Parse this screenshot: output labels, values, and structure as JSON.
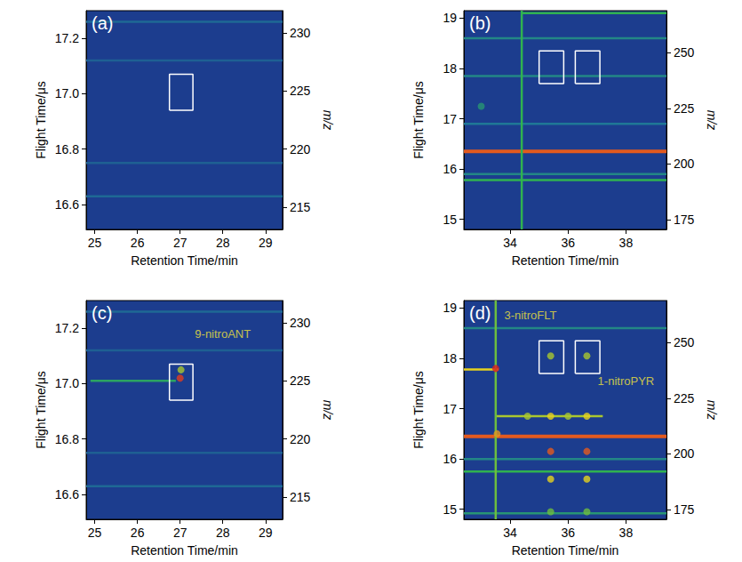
{
  "chart_data": [
    {
      "type": "heatmap",
      "panel": "(a)",
      "x_label": "Retention Time/min",
      "y_label": "Flight Time/μs",
      "y2_label": "m/z",
      "xlim": [
        24.8,
        29.4
      ],
      "xticks": [
        25,
        26,
        27,
        28,
        29
      ],
      "ylim": [
        16.51,
        17.3
      ],
      "yticks": [
        16.6,
        16.8,
        {
          "value": 17,
          "label": "17.0"
        },
        17.2
      ],
      "y2lim": [
        213.1,
        231.9
      ],
      "y2ticks": [
        215,
        220,
        225,
        230
      ],
      "zlim": [
        0,
        10
      ],
      "bands": [
        {
          "x": [
            24.8,
            29.4
          ],
          "y": [
            16.63,
            16.63
          ],
          "intensity": 1.5
        },
        {
          "x": [
            24.8,
            29.4
          ],
          "y": [
            16.75,
            16.75
          ],
          "intensity": 1.2
        },
        {
          "x": [
            24.8,
            29.4
          ],
          "y": [
            17.12,
            17.12
          ],
          "intensity": 1.2
        },
        {
          "x": [
            24.8,
            29.4
          ],
          "y": [
            17.26,
            17.26
          ],
          "intensity": 1.5
        }
      ],
      "spots": [],
      "boxes": [
        {
          "x": [
            26.75,
            27.3
          ],
          "y": [
            16.94,
            17.07
          ]
        }
      ],
      "annotations": []
    },
    {
      "type": "heatmap",
      "panel": "(b)",
      "x_label": "Retention Time/min",
      "y_label": "Flight Time/μs",
      "y2_label": "m/z",
      "xlim": [
        32.4,
        39.4
      ],
      "xticks": [
        34,
        36,
        38
      ],
      "ylim": [
        14.8,
        19.15
      ],
      "yticks": [
        15,
        16,
        17,
        18,
        19
      ],
      "y2lim": [
        170.5,
        269
      ],
      "y2ticks": [
        175,
        200,
        225,
        250
      ],
      "zlim": [
        0,
        10
      ],
      "bands": [
        {
          "x": [
            32.4,
            39.4
          ],
          "y": [
            16.35,
            16.35
          ],
          "intensity": 9
        },
        {
          "x": [
            32.4,
            39.4
          ],
          "y": [
            15.78,
            15.78
          ],
          "intensity": 4
        },
        {
          "x": [
            32.4,
            39.4
          ],
          "y": [
            15.9,
            15.9
          ],
          "intensity": 2.5
        },
        {
          "x": [
            32.4,
            39.4
          ],
          "y": [
            16.9,
            16.9
          ],
          "intensity": 2
        },
        {
          "x": [
            32.4,
            39.4
          ],
          "y": [
            17.85,
            17.85
          ],
          "intensity": 2.5
        },
        {
          "x": [
            32.4,
            39.4
          ],
          "y": [
            18.6,
            18.6
          ],
          "intensity": 2.5
        },
        {
          "x": [
            34.4,
            39.4
          ],
          "y": [
            19.1,
            19.1
          ],
          "intensity": 4
        },
        {
          "x": [
            34.4,
            34.4
          ],
          "y": [
            14.8,
            19.15
          ],
          "intensity": 4
        }
      ],
      "spots": [
        {
          "x": 33.0,
          "y": 17.25,
          "intensity": 3
        }
      ],
      "boxes": [
        {
          "x": [
            35.0,
            35.85
          ],
          "y": [
            17.7,
            18.35
          ]
        },
        {
          "x": [
            36.25,
            37.1
          ],
          "y": [
            17.7,
            18.35
          ]
        }
      ],
      "annotations": []
    },
    {
      "type": "heatmap",
      "panel": "(c)",
      "x_label": "Retention Time/min",
      "y_label": "Flight Time/μs",
      "y2_label": "m/z",
      "xlim": [
        24.8,
        29.4
      ],
      "xticks": [
        25,
        26,
        27,
        28,
        29
      ],
      "ylim": [
        16.51,
        17.3
      ],
      "yticks": [
        16.6,
        16.8,
        {
          "value": 17,
          "label": "17.0"
        },
        17.2
      ],
      "y2lim": [
        213.1,
        231.9
      ],
      "y2ticks": [
        215,
        220,
        225,
        230
      ],
      "zlim": [
        0,
        10
      ],
      "bands": [
        {
          "x": [
            24.8,
            29.4
          ],
          "y": [
            16.63,
            16.63
          ],
          "intensity": 1.5
        },
        {
          "x": [
            24.8,
            29.4
          ],
          "y": [
            16.75,
            16.75
          ],
          "intensity": 1.2
        },
        {
          "x": [
            24.8,
            29.4
          ],
          "y": [
            17.12,
            17.12
          ],
          "intensity": 1.2
        },
        {
          "x": [
            24.8,
            29.4
          ],
          "y": [
            17.26,
            17.26
          ],
          "intensity": 1.5
        },
        {
          "x": [
            24.9,
            26.9
          ],
          "y": [
            17.01,
            17.01
          ],
          "intensity": 3.5
        }
      ],
      "spots": [
        {
          "x": 27.0,
          "y": 17.02,
          "intensity": 9.5
        },
        {
          "x": 27.02,
          "y": 17.05,
          "intensity": 6
        }
      ],
      "boxes": [
        {
          "x": [
            26.75,
            27.3
          ],
          "y": [
            16.94,
            17.07
          ]
        }
      ],
      "annotations": [
        {
          "text": "9-nitroANT",
          "x": 28.0,
          "y": 17.18
        }
      ]
    },
    {
      "type": "heatmap",
      "panel": "(d)",
      "x_label": "Retention Time/min",
      "y_label": "Flight Time/μs",
      "y2_label": "m/z",
      "xlim": [
        32.4,
        39.4
      ],
      "xticks": [
        34,
        36,
        38
      ],
      "ylim": [
        14.8,
        19.15
      ],
      "yticks": [
        15,
        16,
        17,
        18,
        19
      ],
      "y2lim": [
        170.5,
        269
      ],
      "y2ticks": [
        175,
        200,
        225,
        250
      ],
      "zlim": [
        0,
        10
      ],
      "bands": [
        {
          "x": [
            32.4,
            39.4
          ],
          "y": [
            16.45,
            16.45
          ],
          "intensity": 9
        },
        {
          "x": [
            32.4,
            33.6
          ],
          "y": [
            17.78,
            17.78
          ],
          "intensity": 7
        },
        {
          "x": [
            33.5,
            37.2
          ],
          "y": [
            16.85,
            16.85
          ],
          "intensity": 6
        },
        {
          "x": [
            32.4,
            39.4
          ],
          "y": [
            15.75,
            15.75
          ],
          "intensity": 4
        },
        {
          "x": [
            32.4,
            39.4
          ],
          "y": [
            14.92,
            14.92
          ],
          "intensity": 3
        },
        {
          "x": [
            32.4,
            39.4
          ],
          "y": [
            16.0,
            16.0
          ],
          "intensity": 2.5
        },
        {
          "x": [
            32.4,
            39.4
          ],
          "y": [
            18.6,
            18.6
          ],
          "intensity": 2.5
        },
        {
          "x": [
            33.5,
            33.5
          ],
          "y": [
            14.8,
            19.15
          ],
          "intensity": 5
        }
      ],
      "spots": [
        {
          "x": 33.5,
          "y": 17.8,
          "intensity": 10
        },
        {
          "x": 33.55,
          "y": 16.5,
          "intensity": 8
        },
        {
          "x": 35.4,
          "y": 16.15,
          "intensity": 9
        },
        {
          "x": 36.65,
          "y": 16.15,
          "intensity": 9
        },
        {
          "x": 35.4,
          "y": 15.6,
          "intensity": 7
        },
        {
          "x": 36.65,
          "y": 15.6,
          "intensity": 7
        },
        {
          "x": 35.4,
          "y": 18.05,
          "intensity": 6
        },
        {
          "x": 36.65,
          "y": 18.05,
          "intensity": 6
        },
        {
          "x": 34.6,
          "y": 16.85,
          "intensity": 6
        },
        {
          "x": 35.4,
          "y": 16.85,
          "intensity": 7
        },
        {
          "x": 36.0,
          "y": 16.85,
          "intensity": 6
        },
        {
          "x": 36.65,
          "y": 16.85,
          "intensity": 7
        },
        {
          "x": 35.4,
          "y": 14.95,
          "intensity": 5
        },
        {
          "x": 36.65,
          "y": 14.95,
          "intensity": 5
        }
      ],
      "boxes": [
        {
          "x": [
            35.0,
            35.85
          ],
          "y": [
            17.7,
            18.35
          ]
        },
        {
          "x": [
            36.25,
            37.1
          ],
          "y": [
            17.7,
            18.35
          ]
        }
      ],
      "annotations": [
        {
          "text": "3-nitroFLT",
          "x": 34.7,
          "y": 18.85
        },
        {
          "text": "1-nitroPYR",
          "x": 38.0,
          "y": 17.55
        }
      ]
    }
  ]
}
